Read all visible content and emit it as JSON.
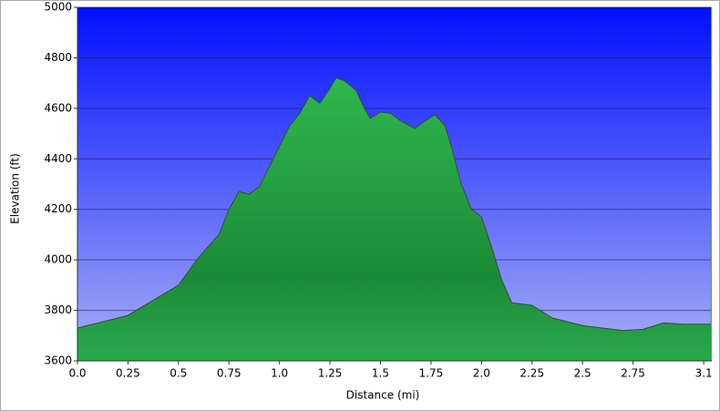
{
  "chart_data": {
    "type": "area",
    "x_label": "Distance   (mi)",
    "y_label": "Elevation (ft)",
    "x": [
      0,
      0.25,
      0.5,
      0.6,
      0.7,
      0.75,
      0.8,
      0.85,
      0.9,
      1.0,
      1.05,
      1.1,
      1.15,
      1.2,
      1.25,
      1.28,
      1.32,
      1.38,
      1.42,
      1.45,
      1.5,
      1.55,
      1.6,
      1.67,
      1.72,
      1.77,
      1.82,
      1.85,
      1.9,
      1.95,
      2.0,
      2.05,
      2.1,
      2.15,
      2.25,
      2.35,
      2.5,
      2.7,
      2.8,
      2.9,
      3.0,
      3.14
    ],
    "values": [
      3730,
      3780,
      3900,
      4010,
      4100,
      4200,
      4270,
      4260,
      4290,
      4450,
      4530,
      4580,
      4650,
      4620,
      4680,
      4720,
      4710,
      4670,
      4600,
      4560,
      4585,
      4580,
      4550,
      4520,
      4550,
      4575,
      4530,
      4450,
      4300,
      4200,
      4170,
      4050,
      3920,
      3830,
      3820,
      3770,
      3740,
      3720,
      3725,
      3750,
      3745,
      3745
    ],
    "color": "#22a04a",
    "xlim": [
      0,
      3.14
    ],
    "xticks": [
      {
        "value": 0,
        "label": "0.0"
      },
      0.25,
      0.5,
      0.75,
      {
        "value": 1,
        "label": "1.0"
      },
      1.25,
      1.5,
      1.75,
      {
        "value": 2,
        "label": "2.0"
      },
      2.25,
      2.5,
      2.75,
      3.1
    ],
    "ylim": [
      3600,
      5000
    ],
    "yticks": [
      3600,
      3800,
      4000,
      4200,
      4400,
      4600,
      4800,
      5000
    ],
    "grid": true
  }
}
